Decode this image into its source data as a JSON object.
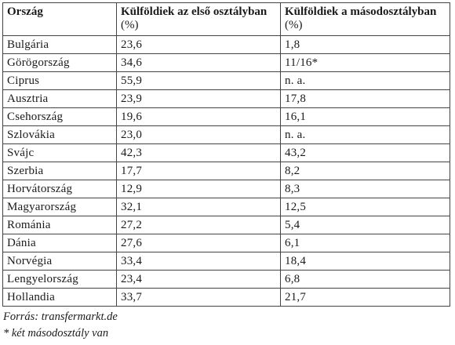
{
  "table": {
    "headers": [
      {
        "line1": "Ország",
        "line2": ""
      },
      {
        "line1": "Külföldiek az első osztályban",
        "line2": "(%)"
      },
      {
        "line1": "Külföldiek a másodosztályban",
        "line2": "(%)"
      }
    ],
    "rows": [
      [
        "Bulgária",
        "23,6",
        "1,8"
      ],
      [
        "Görögország",
        "34,6",
        "11/16*"
      ],
      [
        "Ciprus",
        "55,9",
        "n. a."
      ],
      [
        "Ausztria",
        "23,9",
        "17,8"
      ],
      [
        "Csehország",
        "19,6",
        "16,1"
      ],
      [
        "Szlovákia",
        "23,0",
        "n. a."
      ],
      [
        "Svájc",
        "42,3",
        "43,2"
      ],
      [
        "Szerbia",
        "17,7",
        "8,2"
      ],
      [
        "Horvátország",
        "12,9",
        "8,3"
      ],
      [
        "Magyarország",
        "32,1",
        "12,5"
      ],
      [
        "Románia",
        "27,2",
        "5,4"
      ],
      [
        "Dánia",
        "27,6",
        "6,1"
      ],
      [
        "Norvégia",
        "33,4",
        "18,4"
      ],
      [
        "Lengyelország",
        "23,4",
        "6,8"
      ],
      [
        "Hollandia",
        "33,7",
        "21,7"
      ]
    ]
  },
  "notes": {
    "source": "Forrás: transfermarkt.de",
    "footnote": "* két másodosztály van"
  }
}
